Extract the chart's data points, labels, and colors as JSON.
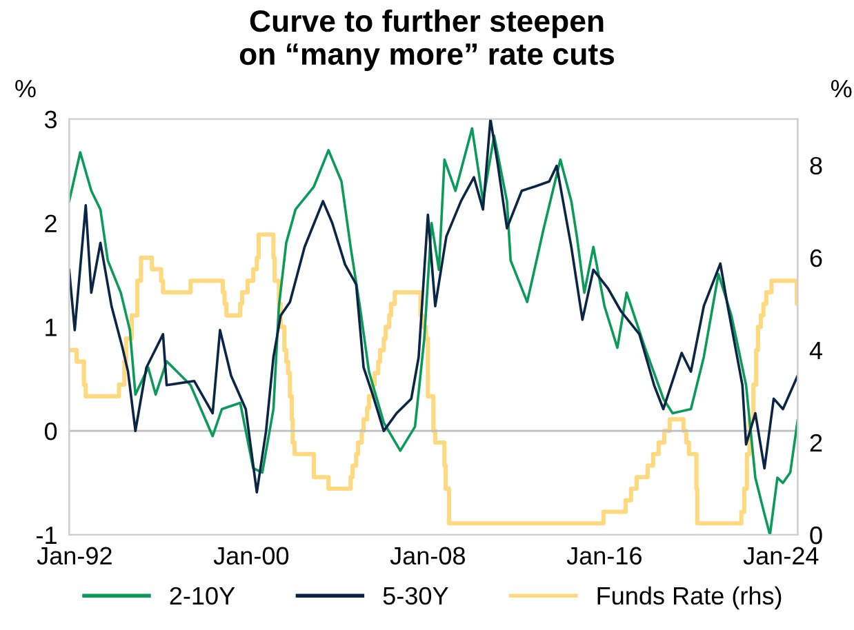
{
  "chart_data": {
    "type": "line",
    "title": "Curve to further steepen\non “many more” rate cuts",
    "ylabel": "%",
    "y2label": "%",
    "xlim": [
      "1991-10",
      "2024-10"
    ],
    "xticks": [
      {
        "value": "1992-01",
        "label": "Jan-92"
      },
      {
        "value": "2000-01",
        "label": "Jan-00"
      },
      {
        "value": "2008-01",
        "label": "Jan-08"
      },
      {
        "value": "2016-01",
        "label": "Jan-16"
      },
      {
        "value": "2024-01",
        "label": "Jan-24"
      }
    ],
    "ylim": [
      -1,
      3
    ],
    "yticks": [
      -1,
      0,
      1,
      2,
      3
    ],
    "y2lim": [
      0,
      9
    ],
    "y2ticks": [
      0,
      2,
      4,
      6,
      8
    ],
    "legend": "bottom",
    "grid": false,
    "line_style": "solid",
    "marker": "none",
    "ref_lines": [
      {
        "axis": "y",
        "value": 0,
        "label": null,
        "color": "#bfbfbf"
      }
    ],
    "series": [
      {
        "name": "2-10Y",
        "color": "#0a9b5a",
        "x": [
          "1991-10",
          "1992-04",
          "1992-10",
          "1993-03",
          "1993-07",
          "1994-02",
          "1994-07",
          "1994-10",
          "1995-05",
          "1995-09",
          "1996-03",
          "1997-04",
          "1998-04",
          "1998-09",
          "1999-07",
          "2000-02",
          "2000-07",
          "2001-01",
          "2001-04",
          "2001-08",
          "2002-01",
          "2002-11",
          "2003-07",
          "2004-02",
          "2004-07",
          "2004-12",
          "2005-05",
          "2006-01",
          "2006-10",
          "2007-06",
          "2007-11",
          "2008-03",
          "2008-07",
          "2008-10",
          "2009-04",
          "2010-01",
          "2010-07",
          "2011-01",
          "2011-08",
          "2011-10",
          "2012-07",
          "2013-04",
          "2014-01",
          "2014-07",
          "2014-10",
          "2015-02",
          "2015-07",
          "2016-01",
          "2016-08",
          "2017-01",
          "2017-11",
          "2018-09",
          "2019-02",
          "2019-12",
          "2020-07",
          "2021-03",
          "2021-10",
          "2022-06",
          "2022-11",
          "2023-04",
          "2023-07",
          "2023-11",
          "2024-02",
          "2024-06",
          "2024-10"
        ],
        "values": [
          2.21,
          2.68,
          2.31,
          2.13,
          1.64,
          1.33,
          0.97,
          0.35,
          0.61,
          0.35,
          0.67,
          0.44,
          -0.05,
          0.21,
          0.27,
          -0.36,
          -0.4,
          0.21,
          1.2,
          1.81,
          2.13,
          2.35,
          2.7,
          2.4,
          1.77,
          1.2,
          0.57,
          0.08,
          -0.19,
          0.04,
          0.88,
          2.0,
          1.55,
          2.61,
          2.31,
          2.91,
          2.21,
          2.84,
          2.21,
          1.64,
          1.24,
          1.95,
          2.61,
          2.21,
          1.87,
          1.33,
          1.77,
          1.2,
          0.8,
          1.33,
          0.8,
          0.31,
          0.17,
          0.21,
          0.71,
          1.51,
          1.11,
          0.44,
          -0.45,
          -0.8,
          -1.0,
          -0.45,
          -0.5,
          -0.4,
          0.1
        ]
      },
      {
        "name": "5-30Y",
        "color": "#0b2547",
        "x": [
          "1991-10",
          "1992-01",
          "1992-07",
          "1992-10",
          "1993-03",
          "1993-09",
          "1994-03",
          "1994-06",
          "1994-10",
          "1995-04",
          "1996-01",
          "1996-03",
          "1997-06",
          "1998-04",
          "1998-08",
          "1999-02",
          "1999-10",
          "2000-04",
          "2000-09",
          "2001-01",
          "2001-05",
          "2001-10",
          "2002-06",
          "2003-04",
          "2003-09",
          "2004-04",
          "2004-10",
          "2005-02",
          "2005-07",
          "2006-01",
          "2006-08",
          "2007-04",
          "2007-08",
          "2008-01",
          "2008-05",
          "2008-11",
          "2009-07",
          "2010-02",
          "2010-07",
          "2010-11",
          "2011-03",
          "2011-08",
          "2012-04",
          "2012-11",
          "2013-07",
          "2013-11",
          "2014-07",
          "2015-01",
          "2015-07",
          "2016-03",
          "2016-10",
          "2017-08",
          "2018-04",
          "2018-09",
          "2019-07",
          "2019-12",
          "2020-07",
          "2021-04",
          "2021-08",
          "2022-04",
          "2022-06",
          "2022-11",
          "2023-04",
          "2023-09",
          "2024-02",
          "2024-10"
        ],
        "values": [
          1.55,
          0.97,
          2.17,
          1.33,
          1.81,
          1.2,
          0.8,
          0.57,
          0.0,
          0.61,
          0.93,
          0.44,
          0.48,
          0.17,
          0.97,
          0.53,
          0.21,
          -0.59,
          0.0,
          0.71,
          1.11,
          1.24,
          1.77,
          2.21,
          2.0,
          1.6,
          1.41,
          0.61,
          0.35,
          0.0,
          0.17,
          0.31,
          0.71,
          2.08,
          1.2,
          1.87,
          2.21,
          2.44,
          2.13,
          3.0,
          2.57,
          1.95,
          2.31,
          2.35,
          2.4,
          2.55,
          1.77,
          1.07,
          1.55,
          1.37,
          1.15,
          0.93,
          0.44,
          0.21,
          0.75,
          0.57,
          1.2,
          1.61,
          1.2,
          0.44,
          -0.13,
          0.17,
          -0.36,
          0.31,
          0.21,
          0.53
        ]
      },
      {
        "name": "Funds Rate (rhs)",
        "color": "#ffd97f",
        "type": "step",
        "axis": "y2",
        "x": [
          "1991-10-01",
          "1992-02-01",
          "1992-06-01",
          "1992-07-01",
          "1994-01-01",
          "1994-04-01",
          "1994-05-01",
          "1994-08-01",
          "1994-11-01",
          "1995-01-01",
          "1995-07-01",
          "1995-12-01",
          "1996-01-01",
          "1997-04-01",
          "1998-09-15",
          "1998-10-15",
          "1998-11-15",
          "1999-07-01",
          "1999-08-01",
          "1999-11-01",
          "2000-02-01",
          "2000-04-01",
          "2000-05-01",
          "2001-01-01",
          "2001-01-20",
          "2001-04-01",
          "2001-05-01",
          "2001-07-01",
          "2001-08-01",
          "2001-09-01",
          "2001-10-01",
          "2001-11-01",
          "2001-11-15",
          "2001-12-15",
          "2002-11-01",
          "2003-07-01",
          "2004-07-01",
          "2004-08-01",
          "2004-10-01",
          "2004-11-01",
          "2005-01-01",
          "2005-02-01",
          "2005-04-01",
          "2005-05-01",
          "2005-07-01",
          "2005-08-01",
          "2005-10-01",
          "2005-11-01",
          "2006-01-01",
          "2006-02-01",
          "2006-04-01",
          "2006-05-01",
          "2006-07-01",
          "2007-09-01",
          "2007-10-01",
          "2007-12-01",
          "2008-01-01",
          "2008-04-01",
          "2008-05-01",
          "2008-10-01",
          "2008-10-20",
          "2008-12-15",
          "2015-12-15",
          "2016-12-15",
          "2017-03-15",
          "2017-06-15",
          "2017-12-15",
          "2018-03-15",
          "2018-06-15",
          "2018-09-15",
          "2018-12-15",
          "2019-07-31",
          "2019-09-15",
          "2019-10-30",
          "2020-03-01",
          "2020-03-15",
          "2022-03-15",
          "2022-05-01",
          "2022-06-15",
          "2022-07-27",
          "2022-10-01",
          "2022-11-15",
          "2022-12-15",
          "2023-02-01",
          "2023-03-15",
          "2023-05-01",
          "2023-07-26",
          "2024-09-18",
          "2024-10-01"
        ],
        "values": [
          4.0,
          3.75,
          3.25,
          3.0,
          3.25,
          3.75,
          4.25,
          4.75,
          5.5,
          6.0,
          5.75,
          5.5,
          5.25,
          5.5,
          5.25,
          5.0,
          4.75,
          5.0,
          5.25,
          5.5,
          5.75,
          6.0,
          6.5,
          6.0,
          5.5,
          5.0,
          4.5,
          4.0,
          3.75,
          3.5,
          3.0,
          2.5,
          2.0,
          1.75,
          1.25,
          1.0,
          1.25,
          1.5,
          1.75,
          2.0,
          2.25,
          2.5,
          2.75,
          3.0,
          3.25,
          3.5,
          3.75,
          4.0,
          4.25,
          4.5,
          4.75,
          5.0,
          5.25,
          4.75,
          4.5,
          4.25,
          3.0,
          2.25,
          2.0,
          1.5,
          1.0,
          0.25,
          0.5,
          0.75,
          1.0,
          1.25,
          1.5,
          1.75,
          2.0,
          2.25,
          2.5,
          2.25,
          2.0,
          1.75,
          1.0,
          0.25,
          0.5,
          1.0,
          1.75,
          2.5,
          3.25,
          4.0,
          4.5,
          4.75,
          5.0,
          5.25,
          5.5,
          5.0,
          5.0
        ]
      }
    ]
  }
}
